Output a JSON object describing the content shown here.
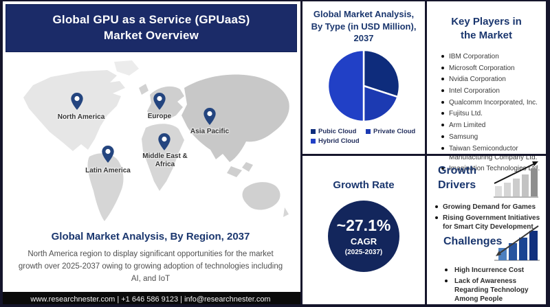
{
  "banner": {
    "title_line1": "Global GPU as a Service (GPUaaS)",
    "title_line2": "Market Overview"
  },
  "map": {
    "regions": [
      {
        "label": "North America"
      },
      {
        "label": "Europe"
      },
      {
        "label": "Asia Pacific"
      },
      {
        "label": "Middle East & Africa"
      },
      {
        "label": "Latin America"
      }
    ]
  },
  "region_analysis": {
    "title": "Global Market Analysis, By Region, 2037",
    "description": "North America region to display significant opportunities for the market growth over 2025-2037 owing to growing adoption of technologies including AI, and IoT"
  },
  "footer": {
    "contact": "www.researchnester.com  |  +1 646 586 9123  |  info@researchnester.com"
  },
  "pie_panel": {
    "title": "Global Market Analysis, By Type (in USD Million), 2037"
  },
  "chart_data": {
    "type": "pie",
    "title": "Global Market Analysis, By Type (in USD Million), 2037",
    "labels": [
      "Pubic Cloud",
      "Private Cloud",
      "Hybrid Cloud"
    ],
    "values": [
      30,
      20,
      50
    ],
    "values_note": "percent share estimated from slice angles; no numeric data labels are shown in the image",
    "colors": [
      "#0e2c7c",
      "#1c3ab2",
      "#2140c6"
    ],
    "legend_position": "bottom",
    "start_angle_deg": 0
  },
  "key_players": {
    "title": "Key Players in the Market",
    "items": [
      "IBM Corporation",
      "Microsoft Corporation",
      "Nvidia Corporation",
      "Intel Corporation",
      "Qualcomm Incorporated, Inc.",
      "Fujitsu Ltd.",
      "Arm Limited",
      "Samsung",
      "Taiwan Semiconductor Manufacturing Company Ltd.",
      "Imagination Technologies Ltd."
    ]
  },
  "growth_rate": {
    "title": "Growth Rate",
    "value": "~27.1%",
    "metric": "CAGR",
    "period": "(2025-2037)"
  },
  "growth_drivers": {
    "title": "Growth Drivers",
    "items": [
      "Growing Demand for Games",
      "Rising Government Initiatives for Smart City Development"
    ]
  },
  "challenges": {
    "title": "Challenges",
    "items": [
      "High Incurrence Cost",
      "Lack of Awareness Regarding Technology Among People"
    ]
  },
  "colors": {
    "banner_navy": "#1b2b68",
    "heading_navy": "#1a366e",
    "cagr_circle_navy": "#13265c",
    "footer_black": "#0a0a0a",
    "pin_navy": "#24457f"
  }
}
